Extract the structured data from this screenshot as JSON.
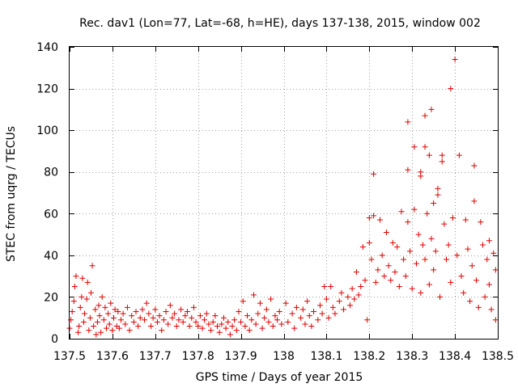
{
  "chart_data": {
    "type": "scatter",
    "title": "Rec. dav1 (Lon=77, Lat=-68, h=HE), days 137-138, 2015, window 002",
    "xlabel": "GPS time / Days of year 2015",
    "ylabel": "STEC from uqrg / TECUs",
    "xlim": [
      137.5,
      138.5
    ],
    "ylim": [
      0,
      140
    ],
    "xticks": [
      137.5,
      137.6,
      137.7,
      137.8,
      137.9,
      138.0,
      138.1,
      138.2,
      138.3,
      138.4,
      138.5
    ],
    "xtick_labels": [
      "137.5",
      "137.6",
      "137.7",
      "137.8",
      "137.9",
      "138",
      "138.1",
      "138.2",
      "138.3",
      "138.4",
      "138.5"
    ],
    "yticks": [
      0,
      20,
      40,
      60,
      80,
      100,
      120,
      140
    ],
    "ytick_labels": [
      "0",
      "20",
      "40",
      "60",
      "80",
      "100",
      "120",
      "140"
    ],
    "grid": true,
    "marker": "+",
    "color": "#e00000",
    "series": [
      {
        "name": "STEC",
        "points": [
          [
            137.5,
            5
          ],
          [
            137.503,
            9
          ],
          [
            137.506,
            13
          ],
          [
            137.51,
            18
          ],
          [
            137.512,
            25
          ],
          [
            137.515,
            30
          ],
          [
            137.52,
            3
          ],
          [
            137.522,
            6
          ],
          [
            137.525,
            15
          ],
          [
            137.528,
            20
          ],
          [
            137.53,
            29
          ],
          [
            137.533,
            8
          ],
          [
            137.535,
            12
          ],
          [
            137.54,
            19
          ],
          [
            137.542,
            27
          ],
          [
            137.545,
            4
          ],
          [
            137.548,
            10
          ],
          [
            137.55,
            22
          ],
          [
            137.553,
            35
          ],
          [
            137.556,
            6
          ],
          [
            137.56,
            14
          ],
          [
            137.562,
            2
          ],
          [
            137.565,
            8
          ],
          [
            137.568,
            16
          ],
          [
            137.57,
            11
          ],
          [
            137.573,
            3
          ],
          [
            137.576,
            20
          ],
          [
            137.58,
            9
          ],
          [
            137.583,
            15
          ],
          [
            137.586,
            5
          ],
          [
            137.59,
            12
          ],
          [
            137.593,
            7
          ],
          [
            137.596,
            17
          ],
          [
            137.6,
            4
          ],
          [
            137.603,
            10
          ],
          [
            137.606,
            14
          ],
          [
            137.61,
            6
          ],
          [
            137.613,
            13
          ],
          [
            137.616,
            5
          ],
          [
            137.62,
            9
          ],
          [
            137.625,
            12
          ],
          [
            137.63,
            7
          ],
          [
            137.635,
            15
          ],
          [
            137.64,
            4
          ],
          [
            137.645,
            11
          ],
          [
            137.65,
            8
          ],
          [
            137.655,
            13
          ],
          [
            137.66,
            6
          ],
          [
            137.665,
            10
          ],
          [
            137.67,
            14
          ],
          [
            137.675,
            9
          ],
          [
            137.68,
            17
          ],
          [
            137.685,
            12
          ],
          [
            137.69,
            6
          ],
          [
            137.695,
            10
          ],
          [
            137.7,
            14
          ],
          [
            137.705,
            8
          ],
          [
            137.71,
            11
          ],
          [
            137.715,
            4
          ],
          [
            137.72,
            9
          ],
          [
            137.725,
            13
          ],
          [
            137.73,
            7
          ],
          [
            137.735,
            16
          ],
          [
            137.74,
            10
          ],
          [
            137.745,
            12
          ],
          [
            137.75,
            6
          ],
          [
            137.755,
            9
          ],
          [
            137.76,
            14
          ],
          [
            137.765,
            8
          ],
          [
            137.77,
            11
          ],
          [
            137.775,
            13
          ],
          [
            137.78,
            6
          ],
          [
            137.785,
            10
          ],
          [
            137.79,
            15
          ],
          [
            137.795,
            8
          ],
          [
            137.8,
            6
          ],
          [
            137.805,
            11
          ],
          [
            137.81,
            5
          ],
          [
            137.815,
            9
          ],
          [
            137.82,
            12
          ],
          [
            137.825,
            7
          ],
          [
            137.83,
            4
          ],
          [
            137.835,
            8
          ],
          [
            137.84,
            11
          ],
          [
            137.845,
            6
          ],
          [
            137.85,
            3
          ],
          [
            137.855,
            7
          ],
          [
            137.86,
            10
          ],
          [
            137.865,
            5
          ],
          [
            137.87,
            8
          ],
          [
            137.875,
            2
          ],
          [
            137.88,
            6
          ],
          [
            137.885,
            9
          ],
          [
            137.89,
            4
          ],
          [
            137.895,
            13
          ],
          [
            137.9,
            8
          ],
          [
            137.905,
            18
          ],
          [
            137.91,
            6
          ],
          [
            137.915,
            11
          ],
          [
            137.92,
            4
          ],
          [
            137.925,
            9
          ],
          [
            137.93,
            21
          ],
          [
            137.935,
            7
          ],
          [
            137.94,
            12
          ],
          [
            137.945,
            17
          ],
          [
            137.95,
            5
          ],
          [
            137.955,
            10
          ],
          [
            137.96,
            14
          ],
          [
            137.965,
            8
          ],
          [
            137.97,
            19
          ],
          [
            137.975,
            6
          ],
          [
            137.98,
            11
          ],
          [
            137.985,
            9
          ],
          [
            137.99,
            13
          ],
          [
            137.995,
            7
          ],
          [
            138.005,
            17
          ],
          [
            138.01,
            8
          ],
          [
            138.02,
            12
          ],
          [
            138.025,
            5
          ],
          [
            138.03,
            15
          ],
          [
            138.04,
            10
          ],
          [
            138.045,
            14
          ],
          [
            138.05,
            7
          ],
          [
            138.055,
            18
          ],
          [
            138.06,
            11
          ],
          [
            138.065,
            6
          ],
          [
            138.07,
            13
          ],
          [
            138.08,
            9
          ],
          [
            138.085,
            16
          ],
          [
            138.09,
            12
          ],
          [
            138.095,
            25
          ],
          [
            138.1,
            19
          ],
          [
            138.105,
            10
          ],
          [
            138.11,
            25
          ],
          [
            138.115,
            15
          ],
          [
            138.12,
            12
          ],
          [
            138.13,
            18
          ],
          [
            138.135,
            22
          ],
          [
            138.14,
            14
          ],
          [
            138.15,
            20
          ],
          [
            138.155,
            16
          ],
          [
            138.16,
            24
          ],
          [
            138.165,
            19
          ],
          [
            138.17,
            32
          ],
          [
            138.175,
            21
          ],
          [
            138.18,
            25
          ],
          [
            138.185,
            44
          ],
          [
            138.19,
            28
          ],
          [
            138.195,
            9
          ],
          [
            138.2,
            46
          ],
          [
            138.2,
            58
          ],
          [
            138.205,
            38
          ],
          [
            138.21,
            79
          ],
          [
            138.21,
            59
          ],
          [
            138.215,
            27
          ],
          [
            138.22,
            33
          ],
          [
            138.225,
            57
          ],
          [
            138.23,
            40
          ],
          [
            138.235,
            30
          ],
          [
            138.24,
            51
          ],
          [
            138.245,
            35
          ],
          [
            138.25,
            28
          ],
          [
            138.255,
            46
          ],
          [
            138.26,
            32
          ],
          [
            138.265,
            44
          ],
          [
            138.27,
            25
          ],
          [
            138.275,
            61
          ],
          [
            138.28,
            38
          ],
          [
            138.285,
            30
          ],
          [
            138.29,
            104
          ],
          [
            138.29,
            81
          ],
          [
            138.29,
            56
          ],
          [
            138.295,
            42
          ],
          [
            138.3,
            24
          ],
          [
            138.305,
            92
          ],
          [
            138.305,
            62
          ],
          [
            138.31,
            36
          ],
          [
            138.315,
            50
          ],
          [
            138.32,
            80
          ],
          [
            138.32,
            78
          ],
          [
            138.32,
            22
          ],
          [
            138.325,
            45
          ],
          [
            138.33,
            107
          ],
          [
            138.33,
            92
          ],
          [
            138.33,
            38
          ],
          [
            138.335,
            60
          ],
          [
            138.34,
            88
          ],
          [
            138.34,
            26
          ],
          [
            138.345,
            110
          ],
          [
            138.345,
            48
          ],
          [
            138.35,
            65
          ],
          [
            138.35,
            33
          ],
          [
            138.355,
            42
          ],
          [
            138.36,
            72
          ],
          [
            138.36,
            69
          ],
          [
            138.365,
            20
          ],
          [
            138.37,
            88
          ],
          [
            138.37,
            85
          ],
          [
            138.375,
            55
          ],
          [
            138.38,
            38
          ],
          [
            138.385,
            45
          ],
          [
            138.39,
            120
          ],
          [
            138.39,
            27
          ],
          [
            138.395,
            58
          ],
          [
            138.4,
            134
          ],
          [
            138.405,
            40
          ],
          [
            138.41,
            88
          ],
          [
            138.415,
            30
          ],
          [
            138.42,
            22
          ],
          [
            138.425,
            57
          ],
          [
            138.43,
            43
          ],
          [
            138.435,
            18
          ],
          [
            138.44,
            35
          ],
          [
            138.445,
            83
          ],
          [
            138.445,
            66
          ],
          [
            138.45,
            28
          ],
          [
            138.455,
            15
          ],
          [
            138.46,
            56
          ],
          [
            138.465,
            45
          ],
          [
            138.47,
            20
          ],
          [
            138.475,
            38
          ],
          [
            138.48,
            47
          ],
          [
            138.48,
            26
          ],
          [
            138.485,
            14
          ],
          [
            138.49,
            41
          ],
          [
            138.495,
            9
          ],
          [
            138.495,
            33
          ]
        ]
      }
    ]
  }
}
